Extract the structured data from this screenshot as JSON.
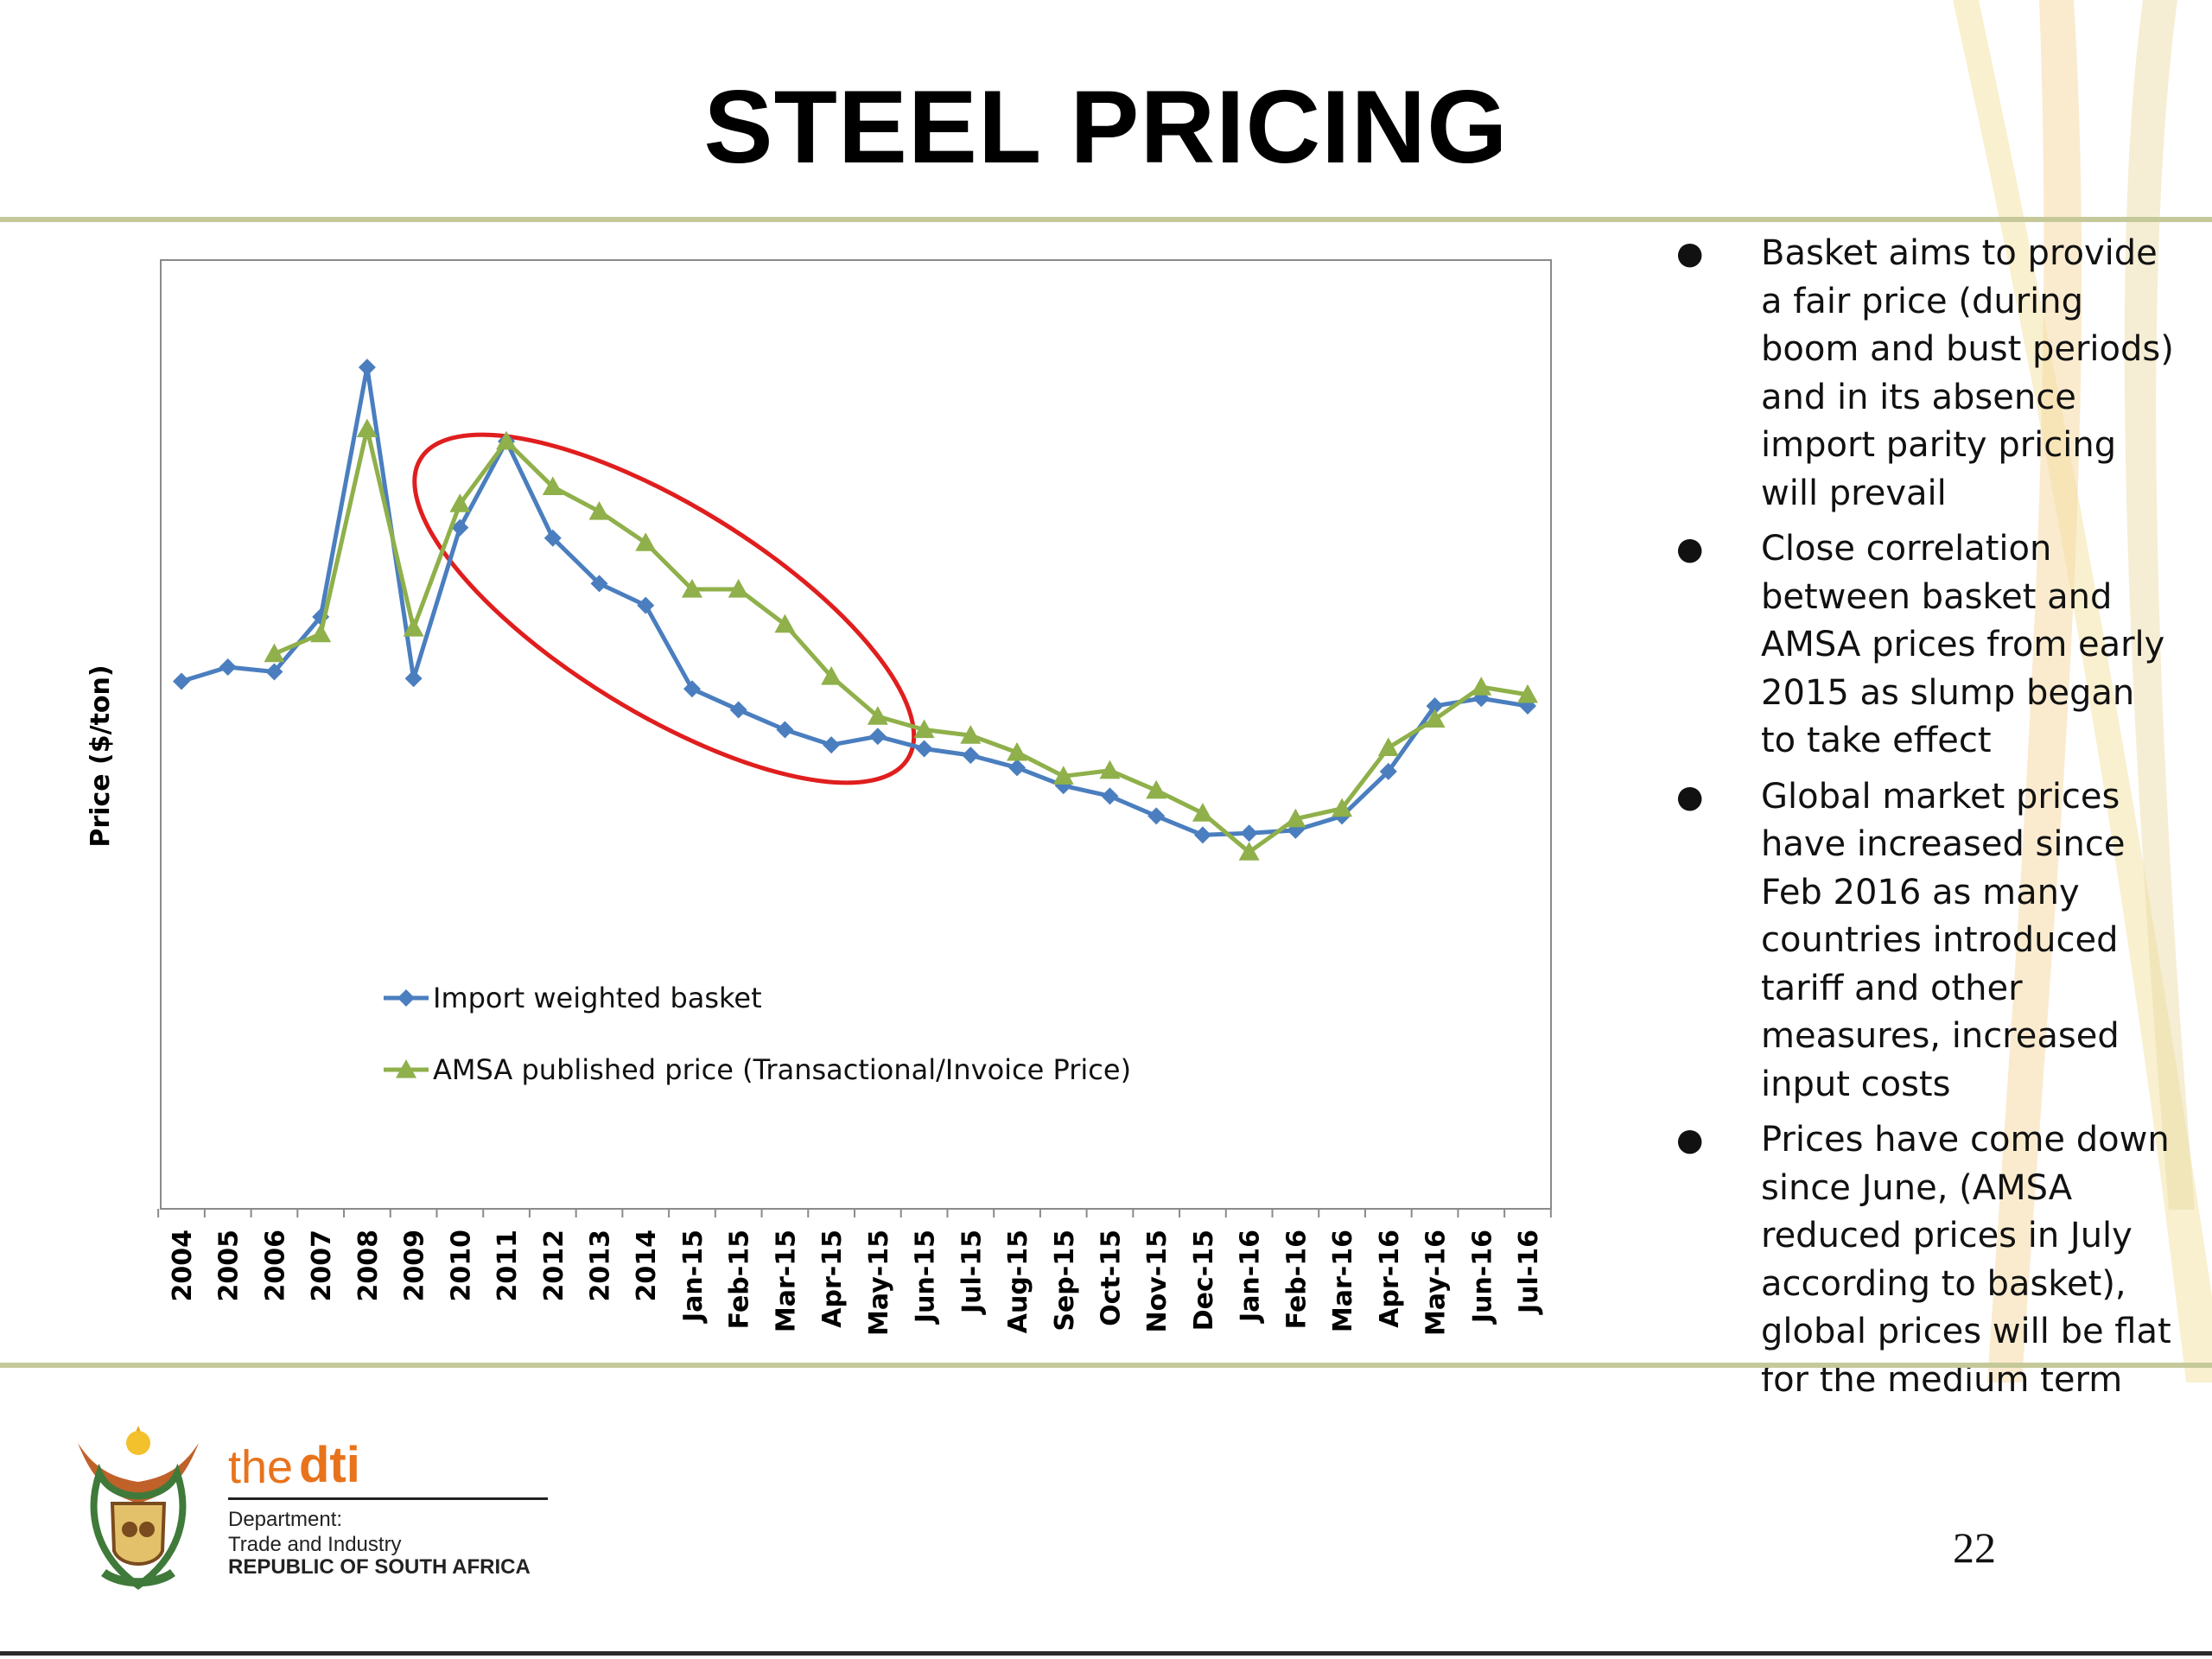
{
  "slide": {
    "title": "STEEL PRICING",
    "page_number": "22"
  },
  "bullets": [
    "Basket aims to provide a fair price (during boom and bust periods) and in its absence import parity pricing will prevail",
    "Close correlation between basket and AMSA prices from early 2015 as slump began to take effect",
    "Global market prices have increased since Feb 2016 as many countries introduced tariff and other measures, increased input costs",
    "Prices have come down since June, (AMSA reduced prices in July according to basket), global prices will be flat for the medium term"
  ],
  "branding": {
    "the": "the",
    "dti": "dti",
    "department_line1": "Department:",
    "department_line2": "Trade and Industry",
    "country": "REPUBLIC OF SOUTH AFRICA",
    "emblem_icon": "coat-of-arms-icon"
  },
  "colors": {
    "basket": "#4a7ebf",
    "amsa": "#8fb04a",
    "highlight": "#e01e1e"
  },
  "chart_data": {
    "type": "line",
    "title": "",
    "xlabel": "",
    "ylabel": "Price ($/ton)",
    "y_axis_ticks_shown": false,
    "ylim": [
      0,
      100
    ],
    "grid": false,
    "legend_position": "lower-left inside plot",
    "categories": [
      "2004",
      "2005",
      "2006",
      "2007",
      "2008",
      "2009",
      "2010",
      "2011",
      "2012",
      "2013",
      "2014",
      "Jan-15",
      "Feb-15",
      "Mar-15",
      "Apr-15",
      "May-15",
      "Jun-15",
      "Jul-15",
      "Aug-15",
      "Sep-15",
      "Oct-15",
      "Nov-15",
      "Dec-15",
      "Jan-16",
      "Feb-16",
      "Mar-16",
      "Apr-16",
      "May-16",
      "Jun-16",
      "Jul-16"
    ],
    "series": [
      {
        "name": "Import weighted basket",
        "marker": "diamond",
        "values": [
          55.6,
          57.1,
          56.6,
          62.4,
          88.7,
          55.9,
          71.8,
          80.9,
          70.7,
          65.9,
          63.6,
          54.8,
          52.6,
          50.5,
          48.9,
          49.8,
          48.5,
          47.8,
          46.5,
          44.6,
          43.5,
          41.4,
          39.4,
          39.6,
          39.9,
          41.4,
          46.1,
          53.0,
          53.8,
          53.0
        ],
        "value_labels_shown": false
      },
      {
        "name": "AMSA published price (Transactional/Invoice Price)",
        "marker": "triangle",
        "values": [
          null,
          null,
          58.5,
          60.6,
          82.2,
          61.2,
          74.3,
          80.9,
          76.1,
          73.5,
          70.2,
          65.3,
          65.3,
          61.6,
          56.1,
          51.9,
          50.5,
          49.9,
          48.1,
          45.6,
          46.2,
          44.1,
          41.7,
          37.6,
          41.1,
          42.2,
          48.6,
          51.6,
          55.0,
          54.2
        ],
        "value_labels_shown": false
      }
    ],
    "annotations": [
      {
        "type": "ellipse-highlight",
        "from": "2010",
        "to": "May-15",
        "note": ""
      }
    ]
  }
}
